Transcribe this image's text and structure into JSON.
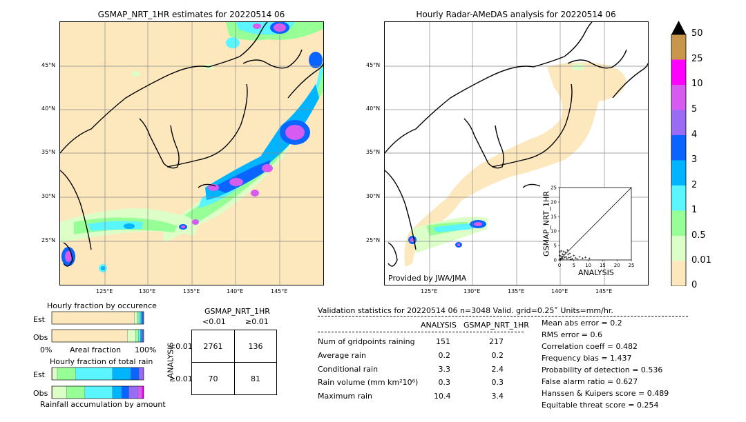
{
  "left_map": {
    "title": "GSMAP_NRT_1HR estimates for 20220514 06",
    "lat_labels": [
      "45°N",
      "40°N",
      "35°N",
      "30°N",
      "25°N"
    ],
    "lon_labels": [
      "125°E",
      "130°E",
      "135°E",
      "140°E",
      "145°E"
    ]
  },
  "right_map": {
    "title": "Hourly Radar-AMeDAS analysis for 20220514 06",
    "lat_labels": [
      "45°N",
      "40°N",
      "35°N",
      "30°N",
      "25°N"
    ],
    "lon_labels": [
      "125°E",
      "130°E",
      "135°E",
      "140°E",
      "145°E"
    ],
    "credit": "Provided by JWA/JMA"
  },
  "colorbar": {
    "labels": [
      "50",
      "25",
      "10",
      "5",
      "4",
      "3",
      "2",
      "1",
      "0.5",
      "0.01",
      "0"
    ],
    "colors": [
      "#c8964b",
      "#ff00ff",
      "#d75bf0",
      "#9a6cf5",
      "#0a64ff",
      "#00b4ff",
      "#5af5ff",
      "#96ff96",
      "#dcffc8",
      "#fde8be"
    ],
    "overflow_color": "#000000"
  },
  "chart_data": [
    {
      "type": "scatter",
      "xlabel": "ANALYSIS",
      "ylabel": "GSMAP_NRT_1HR",
      "xlim": [
        0,
        25
      ],
      "ylim": [
        0,
        25
      ],
      "x_ticks": [
        "0",
        "5",
        "10",
        "15",
        "20",
        "25"
      ],
      "y_ticks": [
        "0",
        "5",
        "10",
        "15",
        "20",
        "25"
      ],
      "points": [
        [
          0.3,
          0.4
        ],
        [
          0.5,
          1.2
        ],
        [
          0.8,
          0.6
        ],
        [
          1.0,
          2.0
        ],
        [
          1.2,
          0.3
        ],
        [
          1.5,
          1.8
        ],
        [
          1.8,
          0.9
        ],
        [
          2.0,
          2.6
        ],
        [
          2.3,
          1.1
        ],
        [
          2.6,
          0.5
        ],
        [
          3.0,
          1.9
        ],
        [
          3.3,
          0.8
        ],
        [
          3.6,
          2.2
        ],
        [
          4.0,
          1.0
        ],
        [
          4.5,
          0.4
        ],
        [
          5.0,
          1.5
        ],
        [
          5.6,
          0.7
        ],
        [
          6.2,
          0.3
        ],
        [
          7.0,
          1.1
        ],
        [
          8.0,
          0.6
        ],
        [
          9.0,
          0.9
        ],
        [
          10.4,
          0.5
        ],
        [
          0.2,
          2.8
        ],
        [
          0.6,
          3.1
        ],
        [
          1.4,
          2.9
        ],
        [
          0.1,
          1.6
        ],
        [
          2.8,
          3.4
        ],
        [
          0.4,
          0.1
        ],
        [
          1.1,
          1.1
        ],
        [
          3.9,
          0.2
        ]
      ]
    },
    {
      "type": "bar",
      "title": "Hourly fraction by occurence",
      "categories": [
        "Est",
        "Obs"
      ],
      "x_ticks": [
        "0%",
        "100%"
      ],
      "xlabel": "Areal fraction",
      "series": [
        {
          "color": "#fde8be",
          "values": [
            0.898,
            0.824
          ]
        },
        {
          "color": "#dcffc8",
          "values": [
            0.03,
            0.09
          ]
        },
        {
          "color": "#96ff96",
          "values": [
            0.02,
            0.03
          ]
        },
        {
          "color": "#5af5ff",
          "values": [
            0.02,
            0.02
          ]
        },
        {
          "color": "#00b4ff",
          "values": [
            0.015,
            0.015
          ]
        },
        {
          "color": "#0a64ff",
          "values": [
            0.01,
            0.01
          ]
        },
        {
          "color": "#9a6cf5",
          "values": [
            0.007,
            0.011
          ]
        }
      ]
    },
    {
      "type": "bar",
      "title": "Hourly fraction of total rain",
      "categories": [
        "Est",
        "Obs"
      ],
      "xlabel": "Rainfall accumulation by amount",
      "series": [
        {
          "color": "#fde8be",
          "values": [
            0.01,
            0.01
          ]
        },
        {
          "color": "#dcffc8",
          "values": [
            0.05,
            0.15
          ]
        },
        {
          "color": "#96ff96",
          "values": [
            0.2,
            0.2
          ]
        },
        {
          "color": "#5af5ff",
          "values": [
            0.4,
            0.3
          ]
        },
        {
          "color": "#00b4ff",
          "values": [
            0.2,
            0.1
          ]
        },
        {
          "color": "#0a64ff",
          "values": [
            0.09,
            0.08
          ]
        },
        {
          "color": "#9a6cf5",
          "values": [
            0.05,
            0.1
          ]
        },
        {
          "color": "#d75bf0",
          "values": [
            0.0,
            0.04
          ]
        },
        {
          "color": "#ff00ff",
          "values": [
            0.0,
            0.02
          ]
        }
      ]
    },
    {
      "type": "table",
      "title": "GSMAP_NRT_1HR",
      "col_headers": [
        "<0.01",
        "≥0.01"
      ],
      "row_label": "ANALYSIS",
      "row_headers": [
        "<0.01",
        "≥0.01"
      ],
      "cells": [
        [
          "2761",
          "136"
        ],
        [
          "70",
          "81"
        ]
      ]
    }
  ],
  "stats": {
    "header": "Validation statistics for 20220514 06  n=3048 Valid. grid=0.25˚ Units=mm/hr.",
    "col_analysis": "ANALYSIS",
    "col_gsmap": "GSMAP_NRT_1HR",
    "rows": [
      {
        "label": "Num of gridpoints raining",
        "analysis": "151",
        "gsmap": "217"
      },
      {
        "label": "Average rain",
        "analysis": "0.2",
        "gsmap": "0.2"
      },
      {
        "label": "Conditional rain",
        "analysis": "3.3",
        "gsmap": "2.4"
      },
      {
        "label": "Rain volume (mm km²10⁶)",
        "analysis": "0.3",
        "gsmap": "0.3"
      },
      {
        "label": "Maximum rain",
        "analysis": "10.4",
        "gsmap": "3.4"
      }
    ],
    "scores": [
      "Mean abs error =    0.2",
      "RMS error =    0.6",
      "Correlation coeff =  0.482",
      "Frequency bias =  1.437",
      "Probability of detection =  0.536",
      "False alarm ratio =  0.627",
      "Hanssen & Kuipers score =  0.489",
      "Equitable threat score =  0.254"
    ]
  }
}
